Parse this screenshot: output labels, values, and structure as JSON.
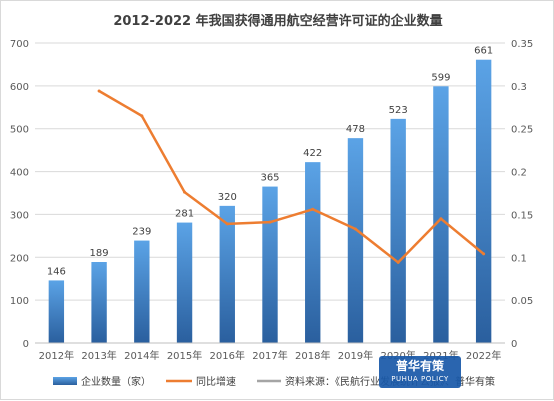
{
  "chart_data": {
    "type": "bar",
    "title": "2012-2022 年我国获得通用航空经营许可证的企业数量",
    "categories": [
      "2012年",
      "2013年",
      "2014年",
      "2015年",
      "2016年",
      "2017年",
      "2018年",
      "2019年",
      "2020年",
      "2021年",
      "2022年"
    ],
    "series": [
      {
        "name": "企业数量（家）",
        "type": "bar",
        "axis": "left",
        "values": [
          146,
          189,
          239,
          281,
          320,
          365,
          422,
          478,
          523,
          599,
          661
        ],
        "data_labels": [
          "146",
          "189",
          "239",
          "281",
          "320",
          "365",
          "422",
          "478",
          "523",
          "599",
          "661"
        ],
        "color": "#3b7fc4"
      },
      {
        "name": "同比增速",
        "type": "line",
        "axis": "right",
        "values": [
          null,
          0.294,
          0.265,
          0.176,
          0.139,
          0.141,
          0.156,
          0.133,
          0.094,
          0.145,
          0.104
        ],
        "color": "#ed7d31"
      }
    ],
    "y_left": {
      "min": 0,
      "max": 700,
      "step": 100,
      "ticks": [
        "0",
        "100",
        "200",
        "300",
        "400",
        "500",
        "600",
        "700"
      ]
    },
    "y_right": {
      "min": 0,
      "max": 0.35,
      "step": 0.05,
      "ticks": [
        "0",
        "0.05",
        "0.1",
        "0.15",
        "0.2",
        "0.25",
        "0.3",
        "0.35"
      ]
    },
    "grid": true,
    "legend_position": "bottom",
    "legend": {
      "bar_label": "企业数量（家）",
      "line_label": "同比增速",
      "source_label": "资料来源：《民航行业发展统计公报》、普华有策",
      "source_color": "#a5a5a5"
    }
  },
  "watermark": {
    "main": "普华有策",
    "sub": "PUHUA POLICY"
  }
}
